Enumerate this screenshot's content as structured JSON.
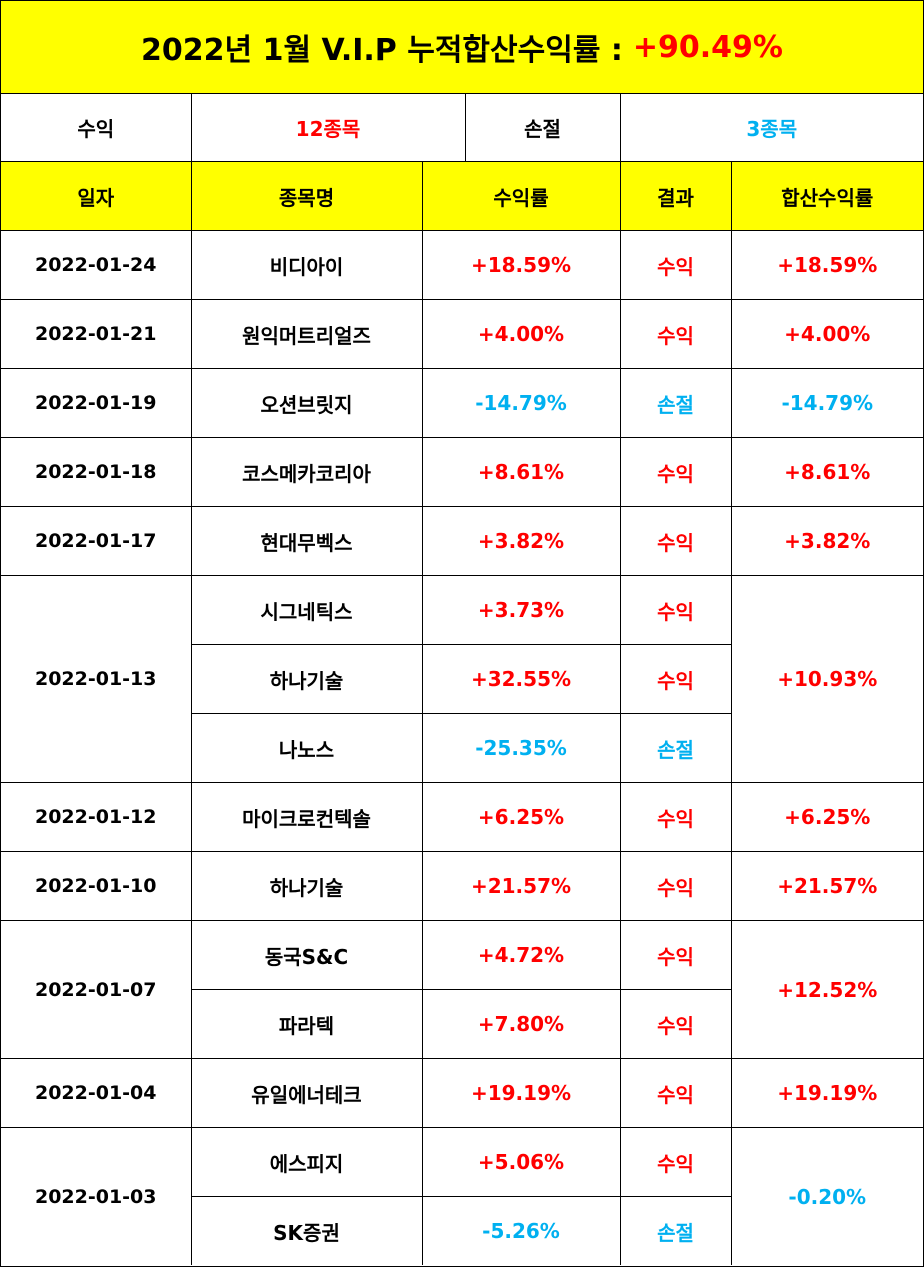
{
  "title": {
    "text": "2022년 1월 V.I.P 누적합산수익률 :",
    "gain": "+90.49%"
  },
  "summary": {
    "profit_label": "수익",
    "profit_count": "12종목",
    "loss_label": "손절",
    "loss_count": "3종목"
  },
  "headers": {
    "date": "일자",
    "stock": "종목명",
    "rate": "수익률",
    "result": "결과",
    "total": "합산수익률"
  },
  "rows": [
    {
      "date": "2022-01-24",
      "stock": "비디아이",
      "rate": "+18.59%",
      "result": "수익",
      "total": "+18.59%"
    },
    {
      "date": "2022-01-21",
      "stock": "원익머트리얼즈",
      "rate": "+4.00%",
      "result": "수익",
      "total": "+4.00%"
    },
    {
      "date": "2022-01-19",
      "stock": "오션브릿지",
      "rate": "-14.79%",
      "result": "손절",
      "total": "-14.79%"
    },
    {
      "date": "2022-01-18",
      "stock": "코스메카코리아",
      "rate": "+8.61%",
      "result": "수익",
      "total": "+8.61%"
    },
    {
      "date": "2022-01-17",
      "stock": "현대무벡스",
      "rate": "+3.82%",
      "result": "수익",
      "total": "+3.82%"
    },
    {
      "date": "2022-01-13",
      "stock": "시그네틱스",
      "rate": "+3.73%",
      "result": "수익",
      "total": "+10.93%"
    },
    {
      "stock": "하나기술",
      "rate": "+32.55%",
      "result": "수익"
    },
    {
      "stock": "나노스",
      "rate": "-25.35%",
      "result": "손절"
    },
    {
      "date": "2022-01-12",
      "stock": "마이크로컨텍솔",
      "rate": "+6.25%",
      "result": "수익",
      "total": "+6.25%"
    },
    {
      "date": "2022-01-10",
      "stock": "하나기술",
      "rate": "+21.57%",
      "result": "수익",
      "total": "+21.57%"
    },
    {
      "date": "2022-01-07",
      "stock": "동국S&C",
      "rate": "+4.72%",
      "result": "수익",
      "total": "+12.52%"
    },
    {
      "stock": "파라텍",
      "rate": "+7.80%",
      "result": "수익"
    },
    {
      "date": "2022-01-04",
      "stock": "유일에너테크",
      "rate": "+19.19%",
      "result": "수익",
      "total": "+19.19%"
    },
    {
      "date": "2022-01-03",
      "stock": "에스피지",
      "rate": "+5.06%",
      "result": "수익",
      "total": "-0.20%"
    },
    {
      "stock": "SK증권",
      "rate": "-5.26%",
      "result": "손절"
    }
  ],
  "colors": {
    "header_bg": "#ffff00",
    "gain": "#ff0000",
    "loss": "#00b0f0"
  }
}
